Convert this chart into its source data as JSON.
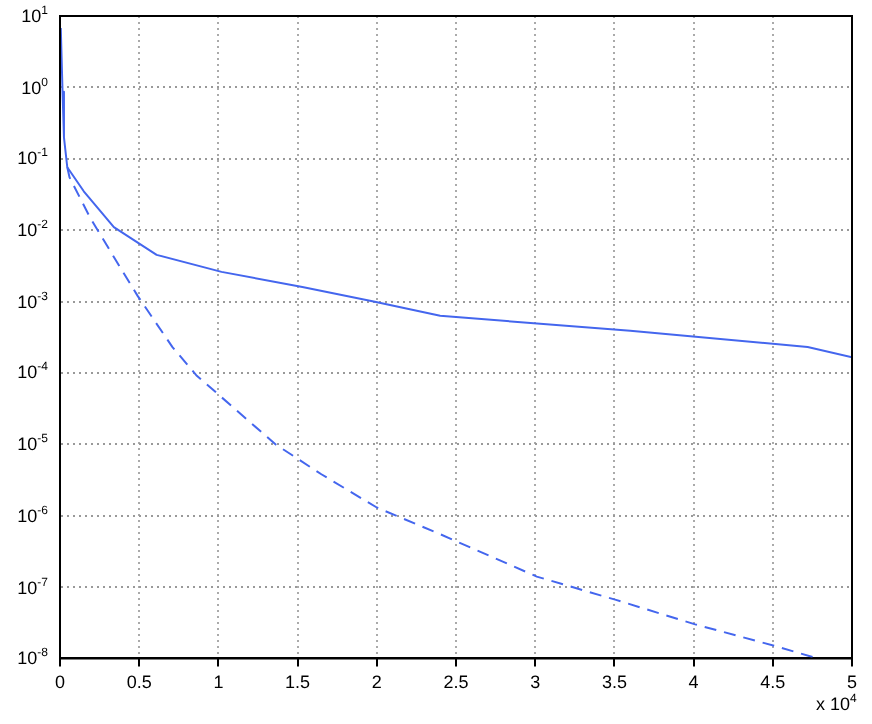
{
  "chart_data": {
    "type": "line",
    "log": "y",
    "grid": true,
    "legend": false,
    "marker": "none",
    "xlim": [
      0,
      5
    ],
    "xticks": [
      0,
      0.5,
      1,
      1.5,
      2,
      2.5,
      3,
      3.5,
      4,
      4.5,
      5
    ],
    "ylim": [
      1e-08,
      10
    ],
    "yticks": [
      {
        "value": 1e-08,
        "label": "10$^{-8}$"
      },
      {
        "value": 1e-07,
        "label": "10$^{-7}$"
      },
      {
        "value": 1e-06,
        "label": "10$^{-6}$"
      },
      {
        "value": 1e-05,
        "label": "10$^{-5}$"
      },
      {
        "value": 0.0001,
        "label": "10$^{-4}$"
      },
      {
        "value": 0.001,
        "label": "10$^{-3}$"
      },
      {
        "value": 0.01,
        "label": "10$^{-2}$"
      },
      {
        "value": 0.1,
        "label": "10$^{-1}$"
      },
      {
        "value": 1,
        "label": "10$^{0}$"
      },
      {
        "value": 10,
        "label": "10$^{1}$"
      }
    ],
    "annotations": [
      "x 10$^{4}$"
    ],
    "series": [
      {
        "color": "#4466ee",
        "line_style": "solid",
        "x": [
          0.005,
          0.016,
          0.025,
          0.046,
          0.15,
          0.34,
          0.61,
          1.02,
          1.53,
          1.98,
          2.4,
          3.6,
          4.72,
          5
        ],
        "values": [
          6.8,
          0.87,
          0.2,
          0.076,
          0.035,
          0.011,
          0.0045,
          0.0026,
          0.0016,
          0.001,
          0.00063,
          0.00039,
          0.00023,
          0.000166
        ]
      },
      {
        "color": "#4466ee",
        "line_style": "dashed",
        "x": [
          0.046,
          0.06,
          0.19,
          0.34,
          0.49,
          0.71,
          0.86,
          1.36,
          1.65,
          2.0,
          2.4,
          3.01,
          3.51,
          4.01,
          4.51,
          4.78
        ],
        "values": [
          0.076,
          0.055,
          0.015,
          0.0042,
          0.0012,
          0.00023,
          9.3e-05,
          1e-05,
          3.8e-06,
          1.3e-06,
          5.5e-07,
          1.4e-07,
          6.6e-08,
          3e-08,
          1.5e-08,
          1e-08
        ]
      }
    ]
  }
}
